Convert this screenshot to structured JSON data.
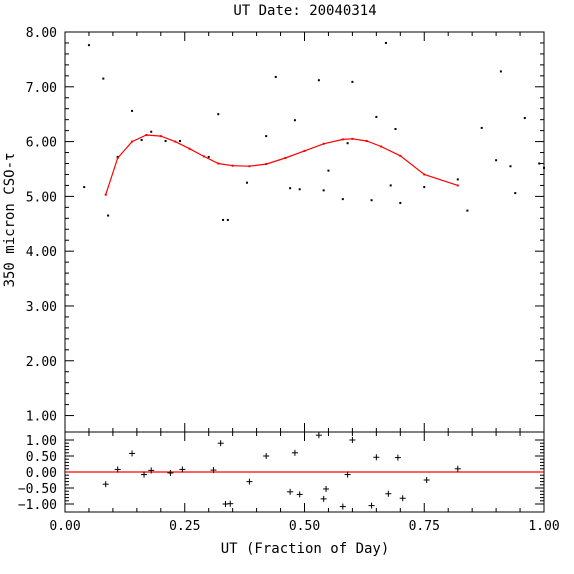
{
  "chart_data": [
    {
      "type": "scatter",
      "title": "UT Date: 20040314",
      "xlabel": "",
      "ylabel": "350 micron CSO-τ",
      "xlim": [
        0.0,
        1.0
      ],
      "ylim": [
        0.7,
        8.0
      ],
      "y_ticks": [
        1.0,
        2.0,
        3.0,
        4.0,
        5.0,
        6.0,
        7.0,
        8.0
      ],
      "y_tick_labels": [
        "1.00",
        "2.00",
        "3.00",
        "4.00",
        "5.00",
        "6.00",
        "7.00",
        "8.00"
      ],
      "grid": false,
      "series": [
        {
          "kind": "points",
          "color": "#000000",
          "points": [
            [
              0.04,
              5.17
            ],
            [
              0.05,
              7.76
            ],
            [
              0.08,
              7.15
            ],
            [
              0.09,
              4.65
            ],
            [
              0.11,
              5.72
            ],
            [
              0.14,
              6.56
            ],
            [
              0.16,
              6.03
            ],
            [
              0.18,
              6.18
            ],
            [
              0.21,
              6.01
            ],
            [
              0.24,
              6.01
            ],
            [
              0.3,
              5.72
            ],
            [
              0.32,
              6.5
            ],
            [
              0.33,
              4.57
            ],
            [
              0.34,
              4.57
            ],
            [
              0.38,
              5.25
            ],
            [
              0.42,
              6.1
            ],
            [
              0.44,
              7.18
            ],
            [
              0.47,
              5.15
            ],
            [
              0.48,
              6.39
            ],
            [
              0.49,
              5.13
            ],
            [
              0.53,
              7.12
            ],
            [
              0.54,
              5.11
            ],
            [
              0.55,
              5.47
            ],
            [
              0.58,
              4.95
            ],
            [
              0.59,
              5.97
            ],
            [
              0.6,
              7.09
            ],
            [
              0.64,
              4.93
            ],
            [
              0.65,
              6.45
            ],
            [
              0.67,
              7.8
            ],
            [
              0.68,
              5.2
            ],
            [
              0.69,
              6.23
            ],
            [
              0.7,
              4.88
            ],
            [
              0.75,
              5.17
            ],
            [
              0.82,
              5.31
            ],
            [
              0.84,
              4.74
            ],
            [
              0.87,
              6.25
            ],
            [
              0.9,
              5.66
            ],
            [
              0.91,
              7.28
            ],
            [
              0.93,
              5.55
            ],
            [
              0.94,
              5.06
            ],
            [
              0.96,
              6.43
            ],
            [
              0.99,
              5.6
            ],
            [
              1.0,
              5.52
            ]
          ]
        },
        {
          "kind": "fit-line",
          "color": "#ff0000",
          "points": [
            [
              0.085,
              5.03
            ],
            [
              0.11,
              5.7
            ],
            [
              0.14,
              6.0
            ],
            [
              0.17,
              6.12
            ],
            [
              0.2,
              6.1
            ],
            [
              0.23,
              6.0
            ],
            [
              0.26,
              5.87
            ],
            [
              0.29,
              5.73
            ],
            [
              0.32,
              5.6
            ],
            [
              0.35,
              5.56
            ],
            [
              0.385,
              5.55
            ],
            [
              0.42,
              5.59
            ],
            [
              0.46,
              5.7
            ],
            [
              0.5,
              5.83
            ],
            [
              0.54,
              5.96
            ],
            [
              0.58,
              6.04
            ],
            [
              0.6,
              6.05
            ],
            [
              0.63,
              6.01
            ],
            [
              0.66,
              5.91
            ],
            [
              0.7,
              5.74
            ],
            [
              0.75,
              5.4
            ],
            [
              0.82,
              5.2
            ]
          ]
        }
      ]
    },
    {
      "type": "scatter",
      "title": "",
      "xlabel": "UT (Fraction of Day)",
      "ylabel": "",
      "xlim": [
        0.0,
        1.0
      ],
      "ylim": [
        -1.25,
        1.25
      ],
      "x_ticks": [
        0.0,
        0.25,
        0.5,
        0.75,
        1.0
      ],
      "x_tick_labels": [
        "0.00",
        "0.25",
        "0.50",
        "0.75",
        "1.00"
      ],
      "y_ticks": [
        1.0,
        0.5,
        0.0,
        -0.5,
        -1.0
      ],
      "y_tick_labels": [
        "1.00",
        "0.50",
        "0.00",
        "−0.50",
        "−1.00"
      ],
      "grid": false,
      "zero_line_color": "#ff0000",
      "series": [
        {
          "kind": "residuals",
          "color": "#000000",
          "points": [
            [
              0.085,
              -0.38
            ],
            [
              0.11,
              0.08
            ],
            [
              0.14,
              0.58
            ],
            [
              0.165,
              -0.08
            ],
            [
              0.18,
              0.05
            ],
            [
              0.22,
              -0.03
            ],
            [
              0.245,
              0.08
            ],
            [
              0.31,
              0.06
            ],
            [
              0.325,
              0.9
            ],
            [
              0.335,
              -1.0
            ],
            [
              0.345,
              -0.99
            ],
            [
              0.385,
              -0.3
            ],
            [
              0.42,
              0.5
            ],
            [
              0.47,
              -0.62
            ],
            [
              0.48,
              0.6
            ],
            [
              0.49,
              -0.7
            ],
            [
              0.53,
              1.15
            ],
            [
              0.54,
              -0.84
            ],
            [
              0.545,
              -0.53
            ],
            [
              0.58,
              -1.08
            ],
            [
              0.59,
              -0.08
            ],
            [
              0.6,
              1.0
            ],
            [
              0.64,
              -1.05
            ],
            [
              0.65,
              0.46
            ],
            [
              0.675,
              -0.68
            ],
            [
              0.695,
              0.45
            ],
            [
              0.705,
              -0.82
            ],
            [
              0.755,
              -0.25
            ],
            [
              0.82,
              0.1
            ]
          ]
        }
      ]
    }
  ]
}
